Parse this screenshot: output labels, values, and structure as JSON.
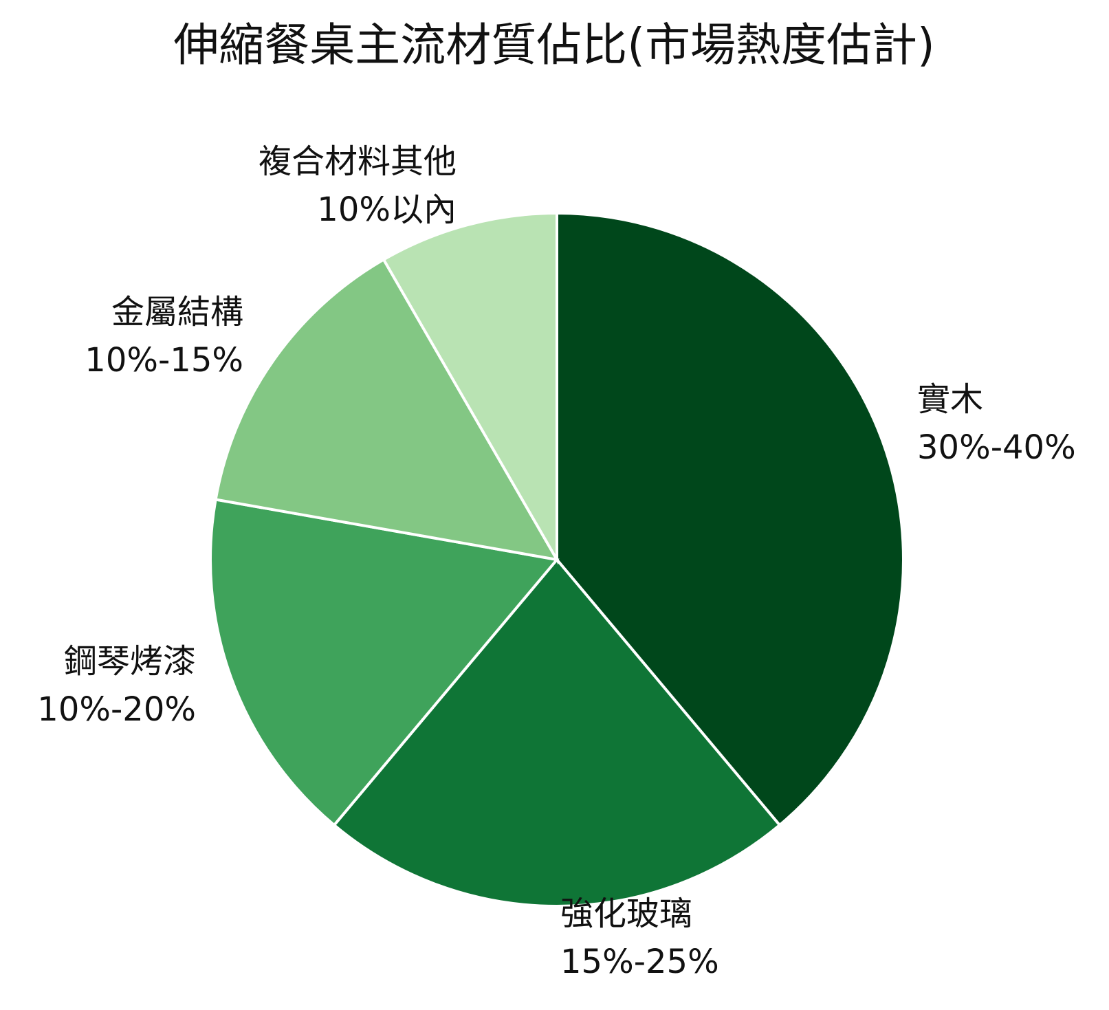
{
  "chart_data": {
    "type": "pie",
    "title": "伸縮餐桌主流材質佔比(市場熱度估計)",
    "categories": [
      "實木",
      "強化玻璃",
      "鋼琴烤漆",
      "金屬結構",
      "複合材料其他"
    ],
    "values": [
      35,
      20,
      15,
      12.5,
      7.5
    ],
    "value_labels": [
      "30%-40%",
      "15%-25%",
      "10%-20%",
      "10%-15%",
      "10%以內"
    ],
    "colors": [
      "#00471b",
      "#0f7536",
      "#3fa35b",
      "#83c784",
      "#b9e3b3"
    ]
  }
}
